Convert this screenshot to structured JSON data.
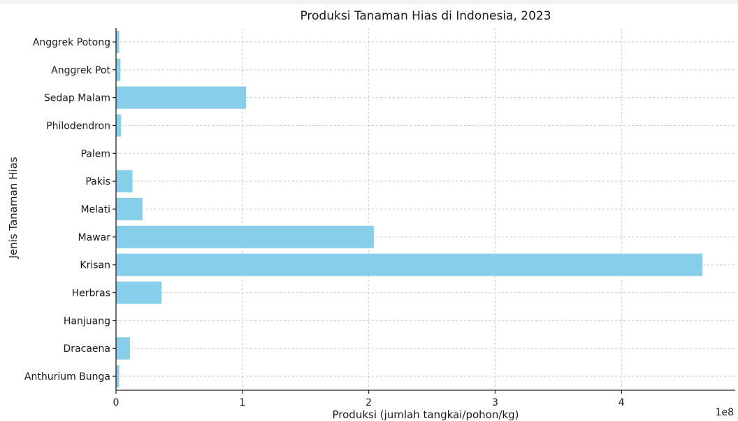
{
  "chart_data": {
    "type": "bar",
    "orientation": "horizontal",
    "title": "Produksi Tanaman Hias di Indonesia, 2023",
    "xlabel": "Produksi (jumlah tangkai/pohon/kg)",
    "ylabel": "Jenis Tanaman Hias",
    "x_scale_label": "1e8",
    "xlim": [
      0,
      4.9
    ],
    "x_ticks": [
      0,
      1,
      2,
      3,
      4
    ],
    "x_tick_labels": [
      "0",
      "1",
      "2",
      "3",
      "4"
    ],
    "grid": true,
    "bar_color": "#87ceeb",
    "categories": [
      "Anggrek Potong",
      "Anggrek Pot",
      "Sedap Malam",
      "Philodendron",
      "Palem",
      "Pakis",
      "Melati",
      "Mawar",
      "Krisan",
      "Herbras",
      "Hanjuang",
      "Dracaena",
      "Anthurium Bunga"
    ],
    "values": [
      0.025,
      0.035,
      1.03,
      0.04,
      0.002,
      0.13,
      0.21,
      2.04,
      4.64,
      0.36,
      0.002,
      0.11,
      0.025
    ]
  }
}
